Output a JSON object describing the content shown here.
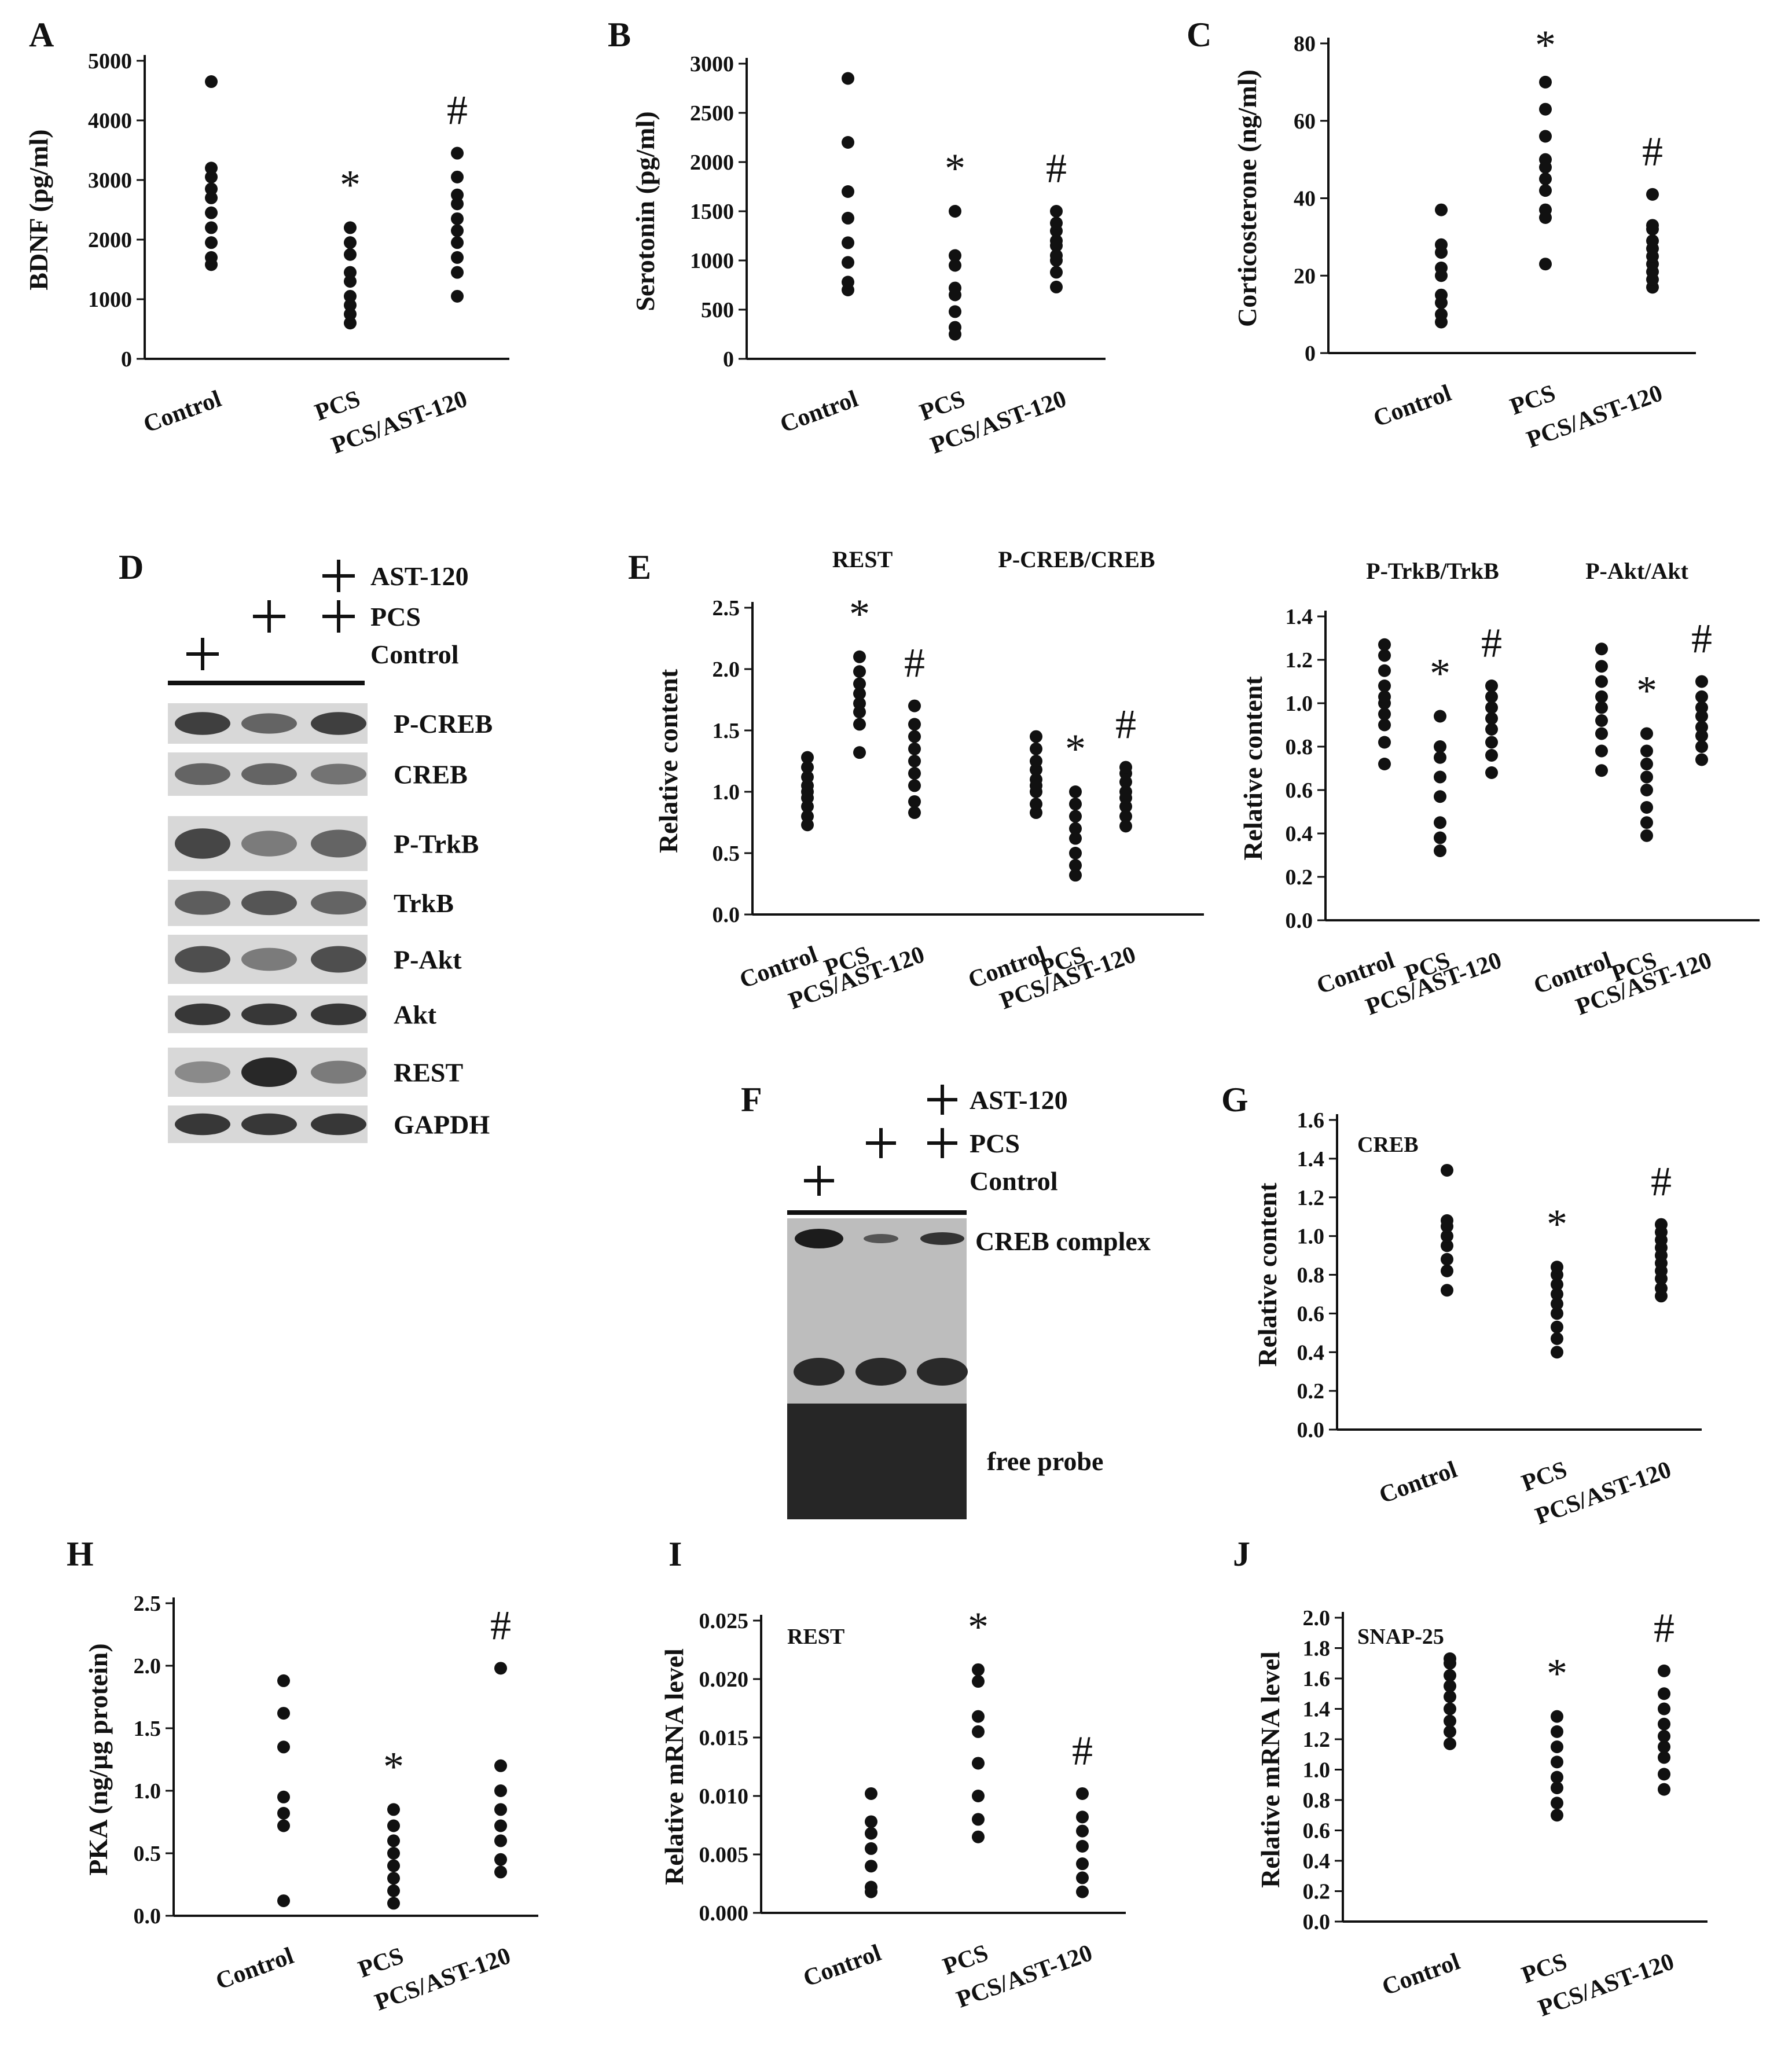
{
  "page": {
    "panels": [
      {
        "id": "A",
        "type": "scatter",
        "ylabel": "BDNF (pg/ml)",
        "ylim": [
          0,
          5000
        ],
        "yticks": [
          "0",
          "1000",
          "2000",
          "3000",
          "4000",
          "5000"
        ],
        "categories": [
          "Control",
          "PCS",
          "PCS/AST-120"
        ],
        "marks": [
          "",
          "*",
          "#"
        ],
        "series": [
          [
            1580,
            1700,
            1950,
            2200,
            2450,
            2700,
            2850,
            3050,
            3200,
            4650
          ],
          [
            600,
            750,
            900,
            1050,
            1300,
            1450,
            1750,
            1950,
            2200
          ],
          [
            1050,
            1450,
            1700,
            1950,
            2150,
            2350,
            2600,
            2750,
            3050,
            3450
          ]
        ]
      },
      {
        "id": "B",
        "type": "scatter",
        "ylabel": "Serotonin (pg/ml)",
        "ylim": [
          0,
          3000
        ],
        "yticks": [
          "0",
          "500",
          "1000",
          "1500",
          "2000",
          "2500",
          "3000"
        ],
        "categories": [
          "Control",
          "PCS",
          "PCS/AST-120"
        ],
        "marks": [
          "",
          "*",
          "#"
        ],
        "series": [
          [
            700,
            780,
            980,
            1180,
            1430,
            1700,
            2200,
            2850
          ],
          [
            250,
            320,
            480,
            650,
            720,
            950,
            1050,
            1500
          ],
          [
            730,
            880,
            1000,
            1050,
            1150,
            1200,
            1300,
            1380,
            1500
          ]
        ]
      },
      {
        "id": "C",
        "type": "scatter",
        "ylabel": "Corticosterone (ng/ml)",
        "ylim": [
          0,
          80
        ],
        "yticks": [
          "0",
          "20",
          "40",
          "60",
          "80"
        ],
        "categories": [
          "Control",
          "PCS",
          "PCS/AST-120"
        ],
        "marks": [
          "",
          "*",
          "#"
        ],
        "series": [
          [
            8,
            10,
            13,
            15,
            20,
            22,
            26,
            28,
            37
          ],
          [
            23,
            35,
            37,
            42,
            45,
            48,
            50,
            56,
            63,
            70
          ],
          [
            17,
            19,
            21,
            23,
            25,
            27,
            29,
            32,
            33,
            41
          ]
        ]
      },
      {
        "id": "E1",
        "type": "scatter",
        "ylabel": "Relative content",
        "ylim": [
          0,
          2.5
        ],
        "yticks": [
          "0.0",
          "0.5",
          "1.0",
          "1.5",
          "2.0",
          "2.5"
        ],
        "groups": [
          "REST",
          "P-CREB/CREB"
        ],
        "panel_label": "E",
        "categories": [
          "Control",
          "PCS",
          "PCS/AST-120",
          "Control",
          "PCS",
          "PCS/AST-120"
        ],
        "marks": [
          "",
          "*",
          "#",
          "",
          "*",
          "#"
        ],
        "series": [
          [
            0.73,
            0.8,
            0.88,
            0.95,
            1.0,
            1.05,
            1.12,
            1.2,
            1.28
          ],
          [
            1.32,
            1.55,
            1.65,
            1.72,
            1.8,
            1.88,
            1.98,
            2.1
          ],
          [
            0.83,
            0.92,
            1.05,
            1.15,
            1.25,
            1.35,
            1.45,
            1.55,
            1.7
          ],
          [
            0.83,
            0.9,
            1.0,
            1.05,
            1.1,
            1.18,
            1.25,
            1.35,
            1.45
          ],
          [
            0.32,
            0.4,
            0.5,
            0.62,
            0.7,
            0.8,
            0.9,
            1.0
          ],
          [
            0.72,
            0.8,
            0.88,
            0.95,
            1.0,
            1.08,
            1.15,
            1.2
          ]
        ]
      },
      {
        "id": "E2",
        "type": "scatter",
        "ylabel": "Relative content",
        "ylim": [
          0,
          1.4
        ],
        "yticks": [
          "0.0",
          "0.2",
          "0.4",
          "0.6",
          "0.8",
          "1.0",
          "1.2",
          "1.4"
        ],
        "groups": [
          "P-TrkB/TrkB",
          "P-Akt/Akt"
        ],
        "categories": [
          "Control",
          "PCS",
          "PCS/AST-120",
          "Control",
          "PCS",
          "PCS/AST-120"
        ],
        "marks": [
          "",
          "*",
          "#",
          "",
          "*",
          "#"
        ],
        "series": [
          [
            0.72,
            0.82,
            0.9,
            0.95,
            1.0,
            1.03,
            1.08,
            1.15,
            1.22,
            1.27
          ],
          [
            0.32,
            0.38,
            0.45,
            0.57,
            0.66,
            0.75,
            0.8,
            0.94
          ],
          [
            0.68,
            0.76,
            0.82,
            0.88,
            0.93,
            0.98,
            1.03,
            1.08
          ],
          [
            0.69,
            0.78,
            0.86,
            0.92,
            0.98,
            1.03,
            1.1,
            1.17,
            1.25
          ],
          [
            0.39,
            0.45,
            0.52,
            0.6,
            0.66,
            0.72,
            0.78,
            0.86
          ],
          [
            0.74,
            0.8,
            0.85,
            0.89,
            0.94,
            0.98,
            1.03,
            1.1
          ]
        ]
      },
      {
        "id": "G",
        "type": "scatter",
        "ylabel": "Relative content",
        "inner_label": "CREB",
        "ylim": [
          0,
          1.6
        ],
        "yticks": [
          "0.0",
          "0.2",
          "0.4",
          "0.6",
          "0.8",
          "1.0",
          "1.2",
          "1.4",
          "1.6"
        ],
        "categories": [
          "Control",
          "PCS",
          "PCS/AST-120"
        ],
        "marks": [
          "",
          "*",
          "#"
        ],
        "series": [
          [
            0.72,
            0.82,
            0.88,
            0.95,
            1.0,
            1.05,
            1.08,
            1.34
          ],
          [
            0.4,
            0.47,
            0.53,
            0.6,
            0.65,
            0.7,
            0.75,
            0.8,
            0.84
          ],
          [
            0.69,
            0.73,
            0.78,
            0.82,
            0.86,
            0.9,
            0.94,
            0.98,
            1.02,
            1.06
          ]
        ]
      },
      {
        "id": "H",
        "type": "scatter",
        "ylabel": "PKA (ng/µg protein)",
        "ylim": [
          0,
          2.5
        ],
        "yticks": [
          "0.0",
          "0.5",
          "1.0",
          "1.5",
          "2.0",
          "2.5"
        ],
        "categories": [
          "Control",
          "PCS",
          "PCS/AST-120"
        ],
        "marks": [
          "",
          "*",
          "#"
        ],
        "series": [
          [
            0.12,
            0.72,
            0.82,
            0.95,
            1.35,
            1.62,
            1.88
          ],
          [
            0.1,
            0.2,
            0.3,
            0.4,
            0.5,
            0.6,
            0.72,
            0.85
          ],
          [
            0.35,
            0.45,
            0.6,
            0.72,
            0.85,
            1.0,
            1.2,
            1.98
          ]
        ]
      },
      {
        "id": "I",
        "type": "scatter",
        "ylabel": "Relative mRNA level",
        "inner_label": "REST",
        "ylim": [
          0,
          0.025
        ],
        "yticks": [
          "0.000",
          "0.005",
          "0.010",
          "0.015",
          "0.020",
          "0.025"
        ],
        "categories": [
          "Control",
          "PCS",
          "PCS/AST-120"
        ],
        "marks": [
          "",
          "*",
          "#"
        ],
        "series": [
          [
            0.0018,
            0.0022,
            0.004,
            0.0055,
            0.0068,
            0.0078,
            0.0102
          ],
          [
            0.0065,
            0.008,
            0.01,
            0.0128,
            0.0155,
            0.0168,
            0.0198,
            0.0208
          ],
          [
            0.0018,
            0.003,
            0.0042,
            0.0057,
            0.007,
            0.0082,
            0.0102
          ]
        ]
      },
      {
        "id": "J",
        "type": "scatter",
        "ylabel": "Relative mRNA level",
        "inner_label": "SNAP-25",
        "ylim": [
          0,
          2.0
        ],
        "yticks": [
          "0.0",
          "0.2",
          "0.4",
          "0.6",
          "0.8",
          "1.0",
          "1.2",
          "1.4",
          "1.6",
          "1.8",
          "2.0"
        ],
        "categories": [
          "Control",
          "PCS",
          "PCS/AST-120"
        ],
        "marks": [
          "",
          "*",
          "#"
        ],
        "series": [
          [
            1.17,
            1.25,
            1.32,
            1.4,
            1.48,
            1.55,
            1.62,
            1.7,
            1.73
          ],
          [
            0.7,
            0.78,
            0.88,
            0.95,
            1.05,
            1.15,
            1.25,
            1.35
          ],
          [
            0.87,
            0.97,
            1.08,
            1.15,
            1.22,
            1.3,
            1.4,
            1.5,
            1.65
          ]
        ]
      }
    ],
    "blot_D": {
      "panel_label": "D",
      "treatments": [
        "AST-120",
        "PCS",
        "Control"
      ],
      "bands": [
        "P-CREB",
        "CREB",
        "P-TrkB",
        "TrkB",
        "P-Akt",
        "Akt",
        "REST",
        "GAPDH"
      ],
      "intensity": [
        [
          0.85,
          0.6,
          0.85
        ],
        [
          0.6,
          0.6,
          0.5
        ],
        [
          0.8,
          0.45,
          0.6
        ],
        [
          0.65,
          0.7,
          0.6
        ],
        [
          0.75,
          0.45,
          0.75
        ],
        [
          0.9,
          0.9,
          0.9
        ],
        [
          0.35,
          1.0,
          0.45
        ],
        [
          0.9,
          0.9,
          0.9
        ]
      ]
    },
    "blot_F": {
      "panel_label": "F",
      "treatments": [
        "AST-120",
        "PCS",
        "Control"
      ],
      "labels": {
        "complex": "CREB complex",
        "free": "free probe"
      }
    }
  }
}
